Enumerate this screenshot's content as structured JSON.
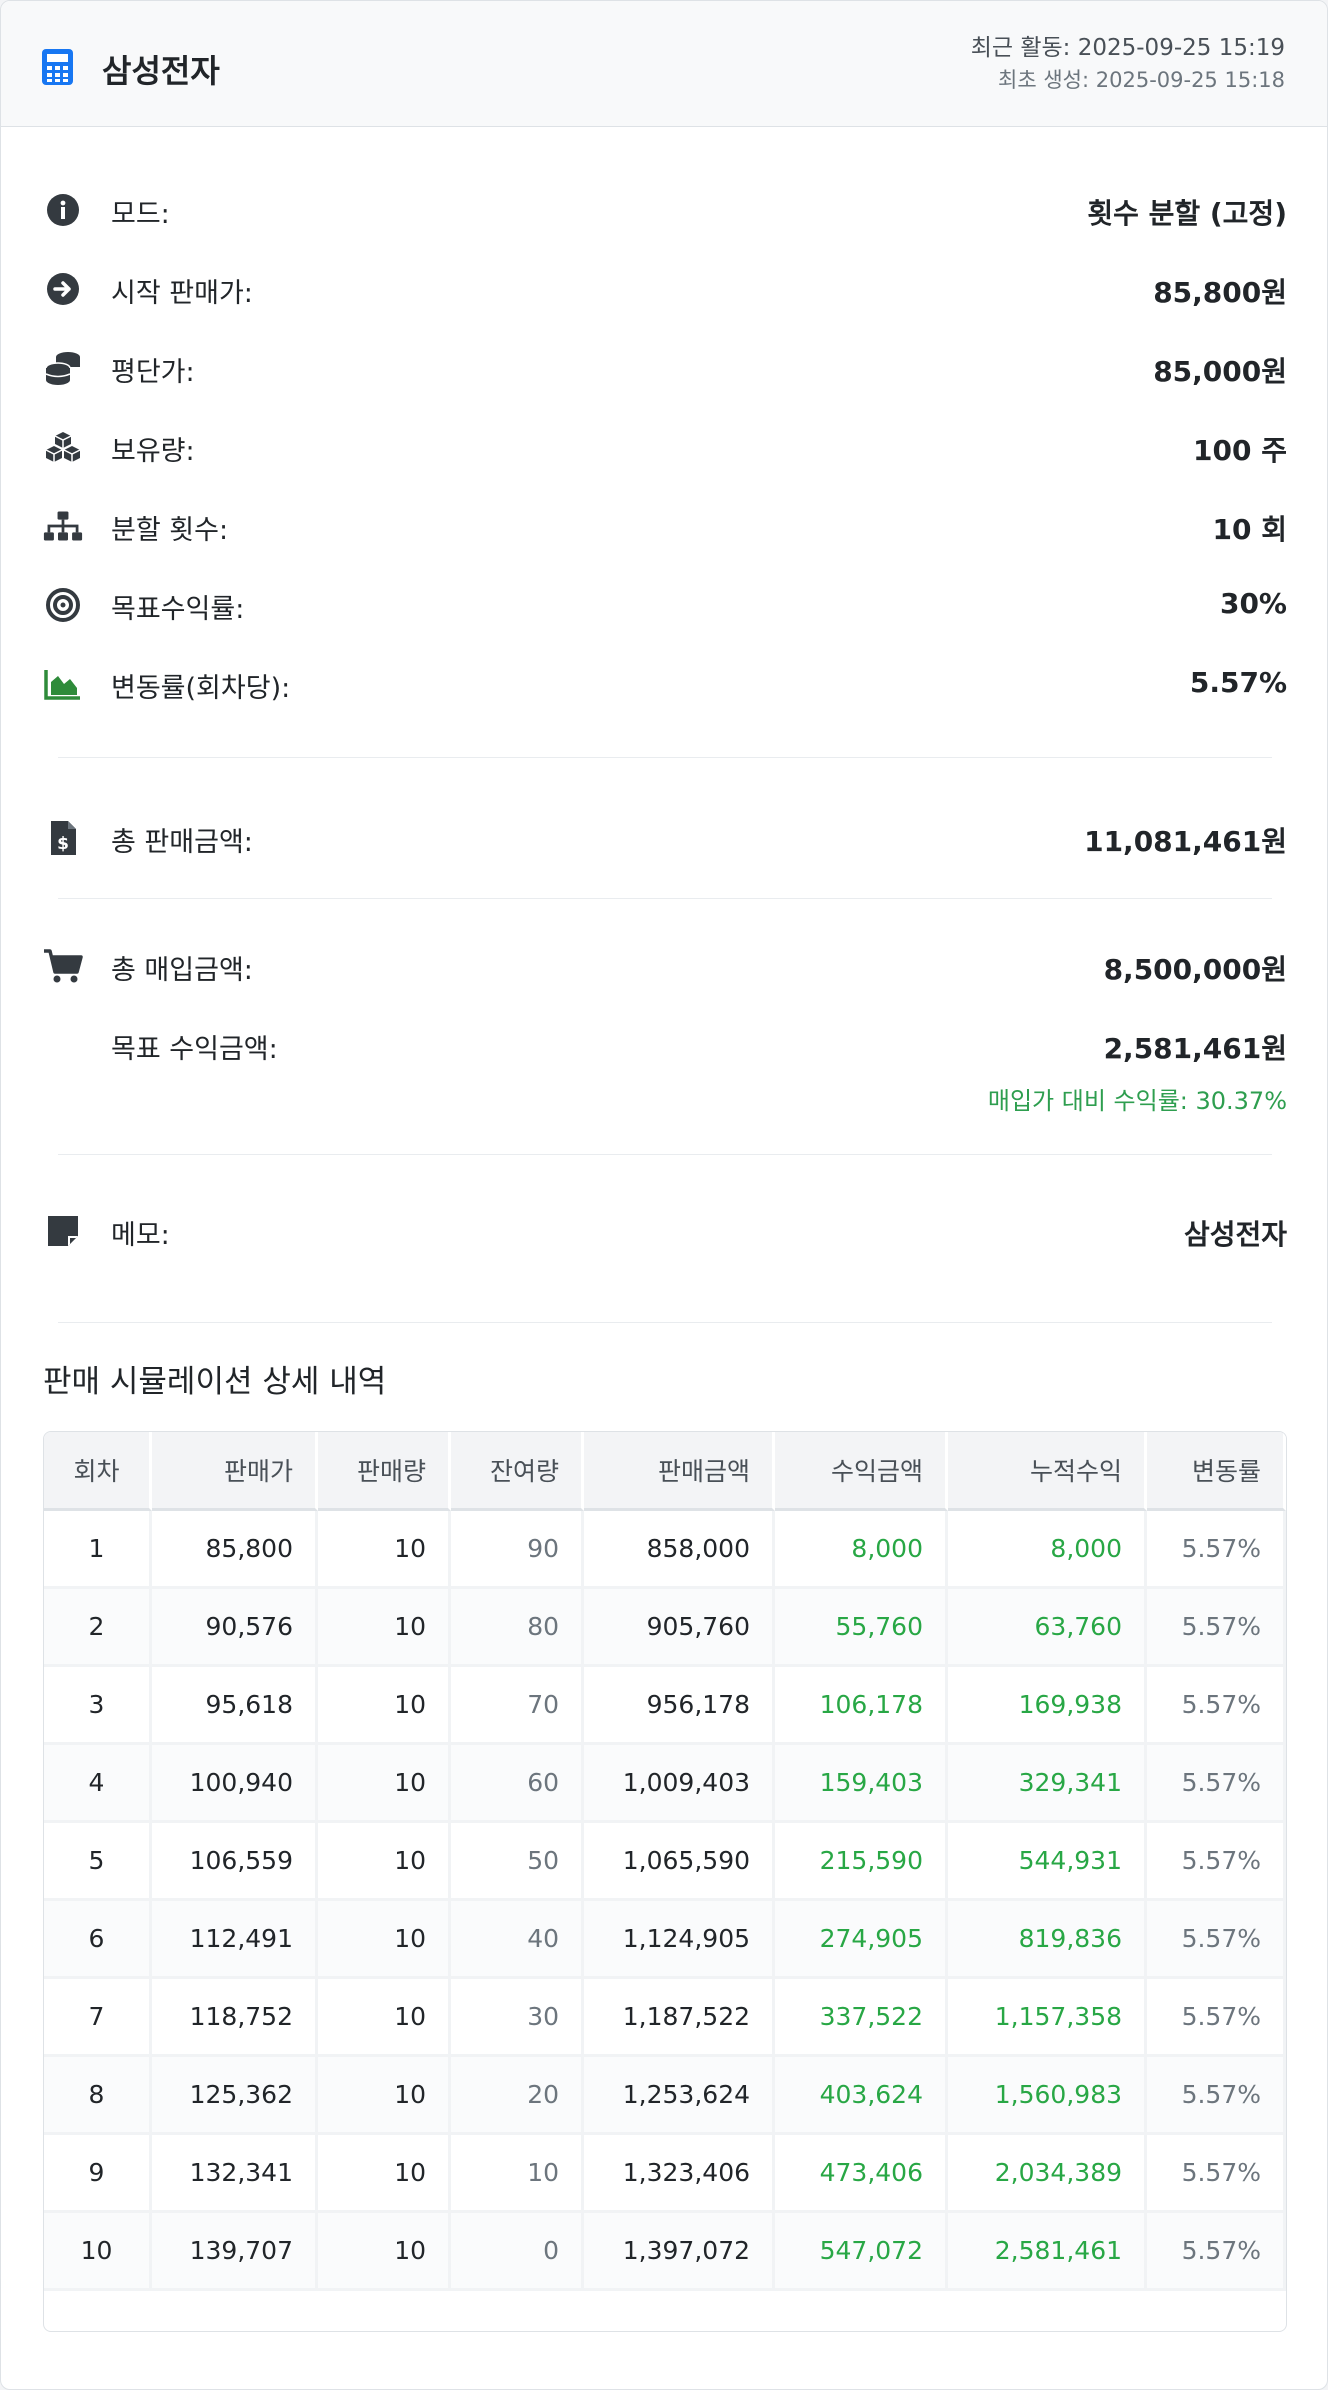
{
  "header": {
    "title": "삼성전자",
    "recent_activity": "최근 활동: 2025-09-25 15:19",
    "created": "최초 생성: 2025-09-25 15:18"
  },
  "details": [
    {
      "icon": "info-icon",
      "label": "모드:",
      "value": "횟수 분할 (고정)"
    },
    {
      "icon": "arrow-circle-right-icon",
      "label": "시작 판매가:",
      "value": "85,800원"
    },
    {
      "icon": "coins-icon",
      "label": "평단가:",
      "value": "85,000원"
    },
    {
      "icon": "cubes-icon",
      "label": "보유량:",
      "value": "100 주"
    },
    {
      "icon": "sitemap-icon",
      "label": "분할 횟수:",
      "value": "10 회"
    },
    {
      "icon": "target-icon",
      "label": "목표수익률:",
      "value": "30%"
    },
    {
      "icon": "chart-area-icon",
      "label": "변동률(회차당):",
      "value": "5.57%"
    }
  ],
  "totals": {
    "sales_label": "총 판매금액:",
    "sales_value": "11,081,461원",
    "purchase_label": "총 매입금액:",
    "purchase_value": "8,500,000원",
    "target_profit_label": "목표 수익금액:",
    "target_profit_value": "2,581,461원",
    "profit_rate_note": "매입가 대비 수익률: 30.37%"
  },
  "memo": {
    "label": "메모:",
    "value": "삼성전자"
  },
  "section_title": "판매 시뮬레이션 상세 내역",
  "table": {
    "headers": [
      "회차",
      "판매가",
      "판매량",
      "잔여량",
      "판매금액",
      "수익금액",
      "누적수익",
      "변동률"
    ],
    "rows": [
      [
        "1",
        "85,800",
        "10",
        "90",
        "858,000",
        "8,000",
        "8,000",
        "5.57%"
      ],
      [
        "2",
        "90,576",
        "10",
        "80",
        "905,760",
        "55,760",
        "63,760",
        "5.57%"
      ],
      [
        "3",
        "95,618",
        "10",
        "70",
        "956,178",
        "106,178",
        "169,938",
        "5.57%"
      ],
      [
        "4",
        "100,940",
        "10",
        "60",
        "1,009,403",
        "159,403",
        "329,341",
        "5.57%"
      ],
      [
        "5",
        "106,559",
        "10",
        "50",
        "1,065,590",
        "215,590",
        "544,931",
        "5.57%"
      ],
      [
        "6",
        "112,491",
        "10",
        "40",
        "1,124,905",
        "274,905",
        "819,836",
        "5.57%"
      ],
      [
        "7",
        "118,752",
        "10",
        "30",
        "1,187,522",
        "337,522",
        "1,157,358",
        "5.57%"
      ],
      [
        "8",
        "125,362",
        "10",
        "20",
        "1,253,624",
        "403,624",
        "1,560,983",
        "5.57%"
      ],
      [
        "9",
        "132,341",
        "10",
        "10",
        "1,323,406",
        "473,406",
        "2,034,389",
        "5.57%"
      ],
      [
        "10",
        "139,707",
        "10",
        "0",
        "1,397,072",
        "547,072",
        "2,581,461",
        "5.57%"
      ]
    ]
  },
  "colors": {
    "brand_blue": "#1877f2",
    "value_green": "#2e8b3a",
    "value_blue": "#1d64b8",
    "profit_green": "#28a745"
  }
}
